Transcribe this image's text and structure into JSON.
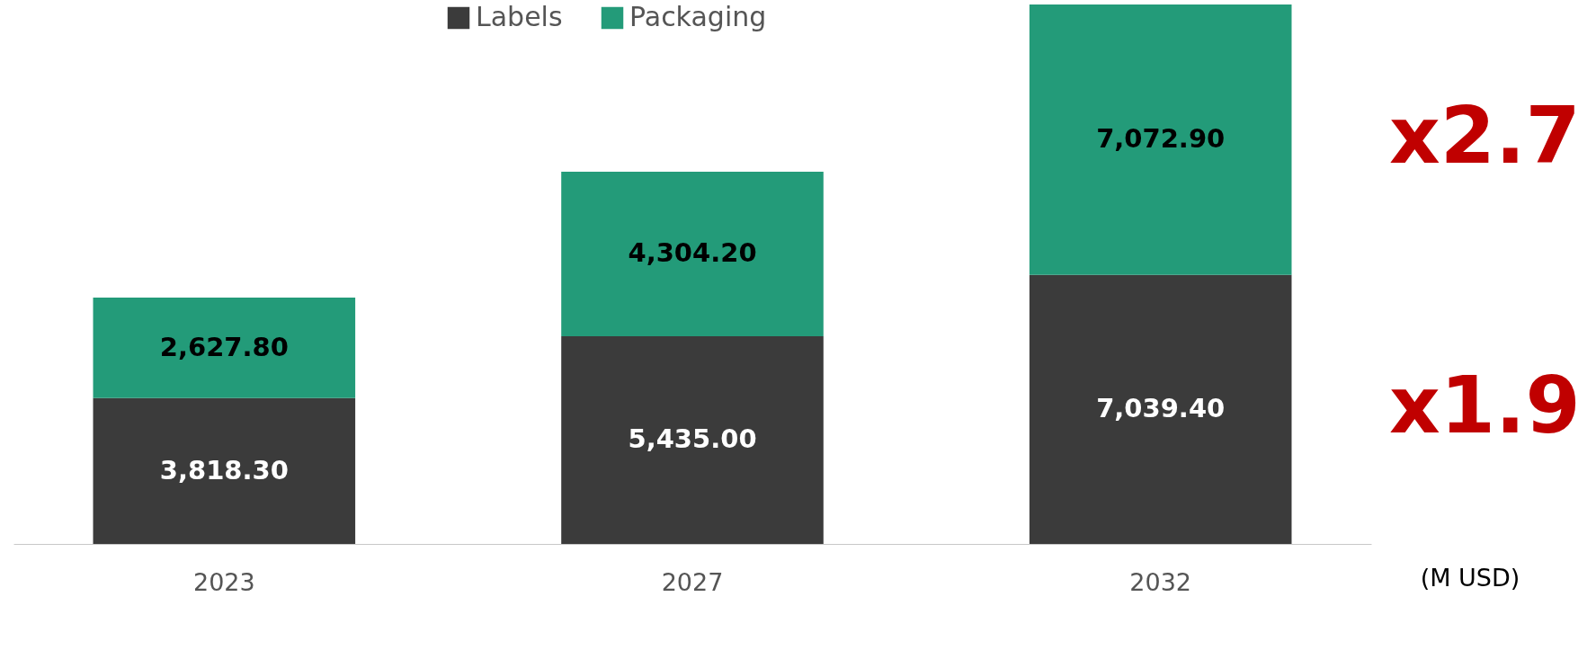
{
  "chart_data": {
    "type": "bar",
    "stacked": true,
    "categories": [
      "2023",
      "2027",
      "2032"
    ],
    "series": [
      {
        "name": "Labels",
        "color": "#3b3b3b",
        "values": [
          3818.3,
          5435.0,
          7039.4
        ],
        "value_labels": [
          "3,818.30",
          "5,435.00",
          "7,039.40"
        ]
      },
      {
        "name": "Packaging",
        "color": "#239b79",
        "values": [
          2627.8,
          4304.2,
          7072.9
        ],
        "value_labels": [
          "2,627.80",
          "4,304.20",
          "7,072.90"
        ]
      }
    ],
    "legend": "top",
    "annotations": [
      "x2.7",
      "x1.9",
      "(M USD)"
    ]
  }
}
